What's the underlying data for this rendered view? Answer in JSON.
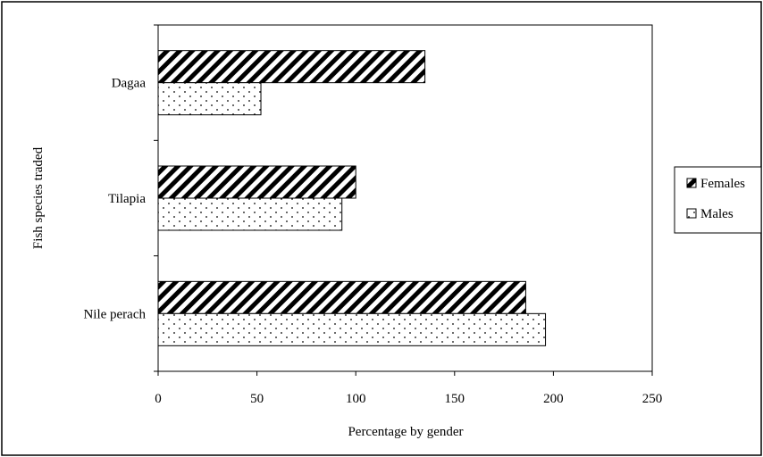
{
  "chart_data": {
    "type": "bar",
    "orientation": "horizontal",
    "categories": [
      "Nile perach",
      "Tilapia",
      "Dagaa"
    ],
    "series": [
      {
        "name": "Females",
        "values": [
          186,
          100,
          135
        ],
        "pattern": "diagonal-hatch"
      },
      {
        "name": "Males",
        "values": [
          196,
          93,
          52
        ],
        "pattern": "dots"
      }
    ],
    "xlabel": "Percentage by gender",
    "ylabel": "Fish species traded",
    "xlim": [
      0,
      250
    ],
    "xticks": [
      0,
      50,
      100,
      150,
      200,
      250
    ],
    "grid": false,
    "legend_position": "right"
  }
}
